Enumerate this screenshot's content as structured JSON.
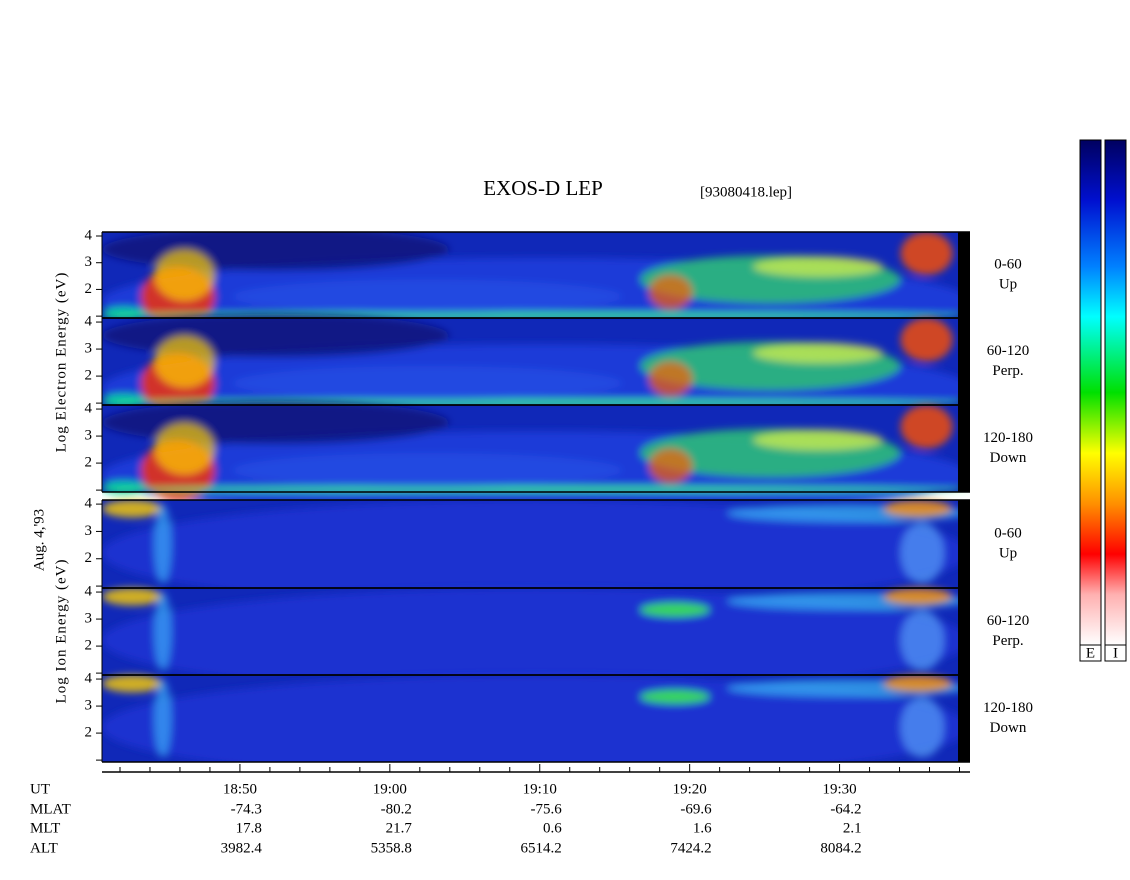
{
  "chart_data": {
    "type": "spectrogram",
    "title": "EXOS-D LEP",
    "subtitle": "[93080418.lep]",
    "date_label": "Aug. 4,'93",
    "xlim": [
      1120.8,
      1178.7
    ],
    "xticks": [
      {
        "value": 1130,
        "label": "18:50"
      },
      {
        "value": 1140,
        "label": "19:00"
      },
      {
        "value": 1150,
        "label": "19:10"
      },
      {
        "value": 1160,
        "label": "19:20"
      },
      {
        "value": 1170,
        "label": "19:30"
      }
    ],
    "minor_xticks": [
      1122,
      1124,
      1126,
      1128,
      1132,
      1134,
      1136,
      1138,
      1142,
      1144,
      1146,
      1148,
      1152,
      1154,
      1156,
      1158,
      1162,
      1164,
      1166,
      1168,
      1172,
      1174,
      1176,
      1178
    ],
    "ylim": [
      0.93,
      4.15
    ],
    "yticks": [
      2,
      3,
      4
    ],
    "minor_yticks": [
      1
    ],
    "groups": [
      {
        "ylabel": "Log Electron Energy (eV)",
        "species": "electron",
        "panels": [
          {
            "label": [
              "0-60",
              "Up"
            ]
          },
          {
            "label": [
              "60-120",
              "Perp."
            ]
          },
          {
            "label": [
              "120-180",
              "Down"
            ]
          }
        ]
      },
      {
        "ylabel": "Log  Ion  Energy (eV)",
        "species": "ion",
        "panels": [
          {
            "label": [
              "0-60",
              "Up"
            ]
          },
          {
            "label": [
              "60-120",
              "Perp."
            ]
          },
          {
            "label": [
              "120-180",
              "Down"
            ]
          }
        ]
      }
    ],
    "colorbar_labels": [
      "E",
      "I"
    ],
    "orbit_table": {
      "rows": [
        {
          "name": "UT",
          "values": []
        },
        {
          "name": "MLAT",
          "values": [
            "-74.3",
            "-80.2",
            "-75.6",
            "-69.6",
            "-64.2"
          ]
        },
        {
          "name": "MLT",
          "values": [
            "17.8",
            "21.7",
            "0.6",
            "1.6",
            "2.1"
          ]
        },
        {
          "name": "ALT",
          "values": [
            "3982.4",
            "5358.8",
            "6514.2",
            "7424.2",
            "8084.2"
          ]
        }
      ]
    }
  }
}
